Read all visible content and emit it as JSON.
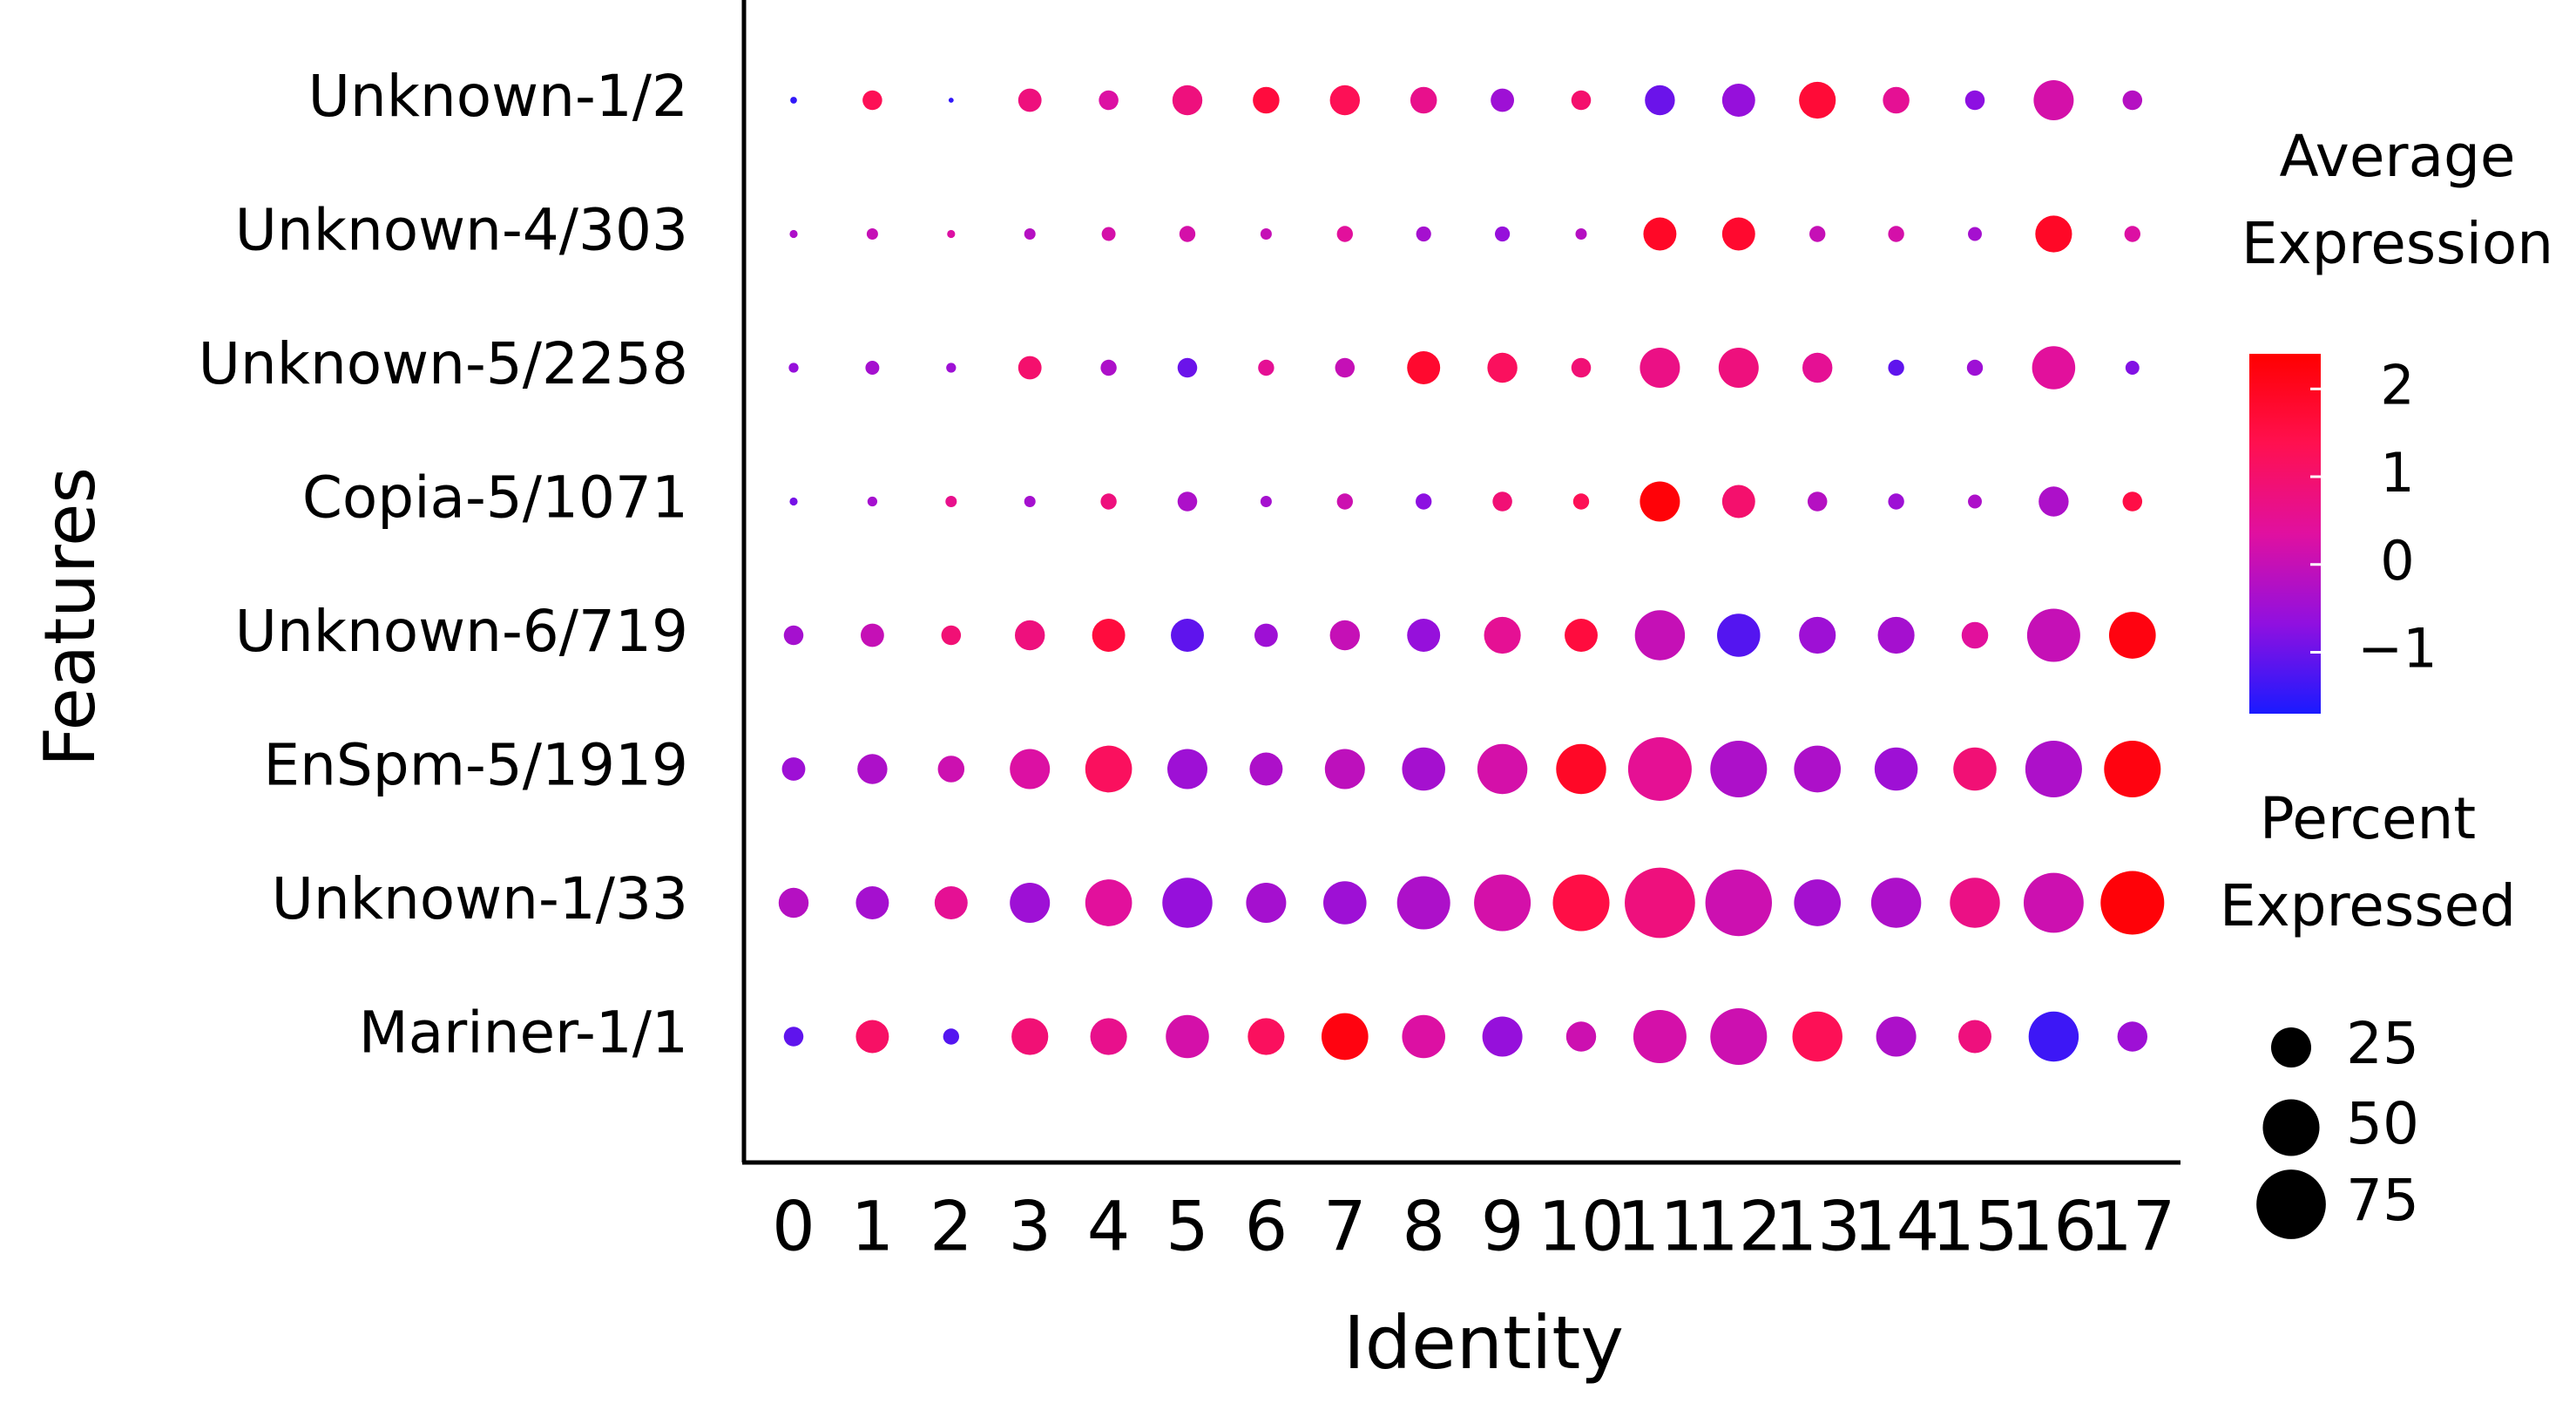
{
  "chart_data": {
    "type": "dotplot",
    "x_label": "Identity",
    "y_label": "Features",
    "categories": [
      "0",
      "1",
      "2",
      "3",
      "4",
      "5",
      "6",
      "7",
      "8",
      "9",
      "10",
      "11",
      "12",
      "13",
      "14",
      "15",
      "16",
      "17"
    ],
    "series": [
      {
        "name": "Unknown-1/2",
        "expression": [
          -1.5,
          1.3,
          -1.5,
          0.8,
          0.3,
          0.8,
          1.6,
          1.3,
          0.6,
          -0.5,
          1.0,
          -1.0,
          -0.6,
          1.7,
          0.5,
          -0.7,
          0.2,
          -0.2
        ],
        "percent": [
          0.7,
          6,
          0.4,
          8.5,
          6,
          14,
          11,
          14,
          11,
          8.5,
          6,
          14,
          17,
          21,
          11,
          6,
          25,
          6
        ]
      },
      {
        "name": "Unknown-4/303",
        "expression": [
          -0.3,
          0.0,
          0.3,
          -0.2,
          0.2,
          0.2,
          0.0,
          0.4,
          -0.4,
          -0.6,
          -0.2,
          1.9,
          1.8,
          0.0,
          0.2,
          -0.4,
          1.9,
          0.3
        ],
        "percent": [
          1,
          2,
          1,
          2,
          3,
          4,
          2,
          4,
          3.5,
          3.5,
          2,
          17,
          17,
          4,
          4,
          3,
          21,
          4
        ]
      },
      {
        "name": "Unknown-5/2258",
        "expression": [
          -0.6,
          -0.4,
          -0.5,
          1.0,
          -0.3,
          -1.0,
          0.5,
          0.0,
          1.8,
          1.2,
          0.9,
          0.7,
          0.8,
          0.5,
          -1.1,
          -0.5,
          0.4,
          -0.8
        ],
        "percent": [
          1.5,
          3,
          1.5,
          8.5,
          4,
          6,
          4,
          6,
          17,
          14,
          6,
          25,
          25,
          14,
          4,
          4,
          29,
          3
        ]
      },
      {
        "name": "Copia-5/1071",
        "expression": [
          -0.9,
          -0.4,
          0.6,
          -0.4,
          0.8,
          -0.3,
          -0.4,
          0.1,
          -0.7,
          0.9,
          1.3,
          2.3,
          1.0,
          -0.2,
          -0.5,
          -0.3,
          -0.3,
          1.5
        ],
        "percent": [
          1,
          1.5,
          2,
          2,
          4,
          6,
          2,
          4,
          4,
          6,
          4,
          25,
          17,
          6,
          4,
          3,
          14,
          6
        ]
      },
      {
        "name": "Unknown-6/719",
        "expression": [
          -0.4,
          0.0,
          0.9,
          0.8,
          1.6,
          -1.1,
          -0.5,
          0.0,
          -0.6,
          0.5,
          1.6,
          0.0,
          -1.2,
          -0.5,
          -0.4,
          0.4,
          0.0,
          2.2
        ],
        "percent": [
          6,
          8.5,
          6,
          14,
          17,
          17,
          8.5,
          14,
          17,
          21,
          17,
          39,
          29,
          21,
          21,
          11,
          44,
          34
        ]
      },
      {
        "name": "EnSpm-5/1919",
        "expression": [
          -0.5,
          -0.3,
          0.1,
          0.3,
          1.2,
          -0.5,
          -0.3,
          -0.1,
          -0.4,
          0.2,
          1.9,
          0.5,
          -0.3,
          -0.3,
          -0.5,
          0.9,
          -0.3,
          2.2
        ],
        "percent": [
          8.5,
          14,
          11,
          25,
          34,
          25,
          17,
          25,
          29,
          39,
          39,
          63,
          50,
          34,
          29,
          29,
          50,
          50
        ]
      },
      {
        "name": "Unknown-1/33",
        "expression": [
          -0.2,
          -0.4,
          0.5,
          -0.5,
          0.4,
          -0.6,
          -0.4,
          -0.5,
          -0.3,
          0.2,
          1.5,
          0.8,
          0.1,
          -0.4,
          -0.3,
          0.7,
          0.1,
          2.3
        ],
        "percent": [
          14,
          17,
          17,
          25,
          34,
          39,
          25,
          29,
          44,
          50,
          50,
          77,
          69,
          34,
          39,
          39,
          56,
          63
        ]
      },
      {
        "name": "Mariner-1/1",
        "expression": [
          -1.1,
          1.1,
          -1.2,
          0.9,
          0.6,
          0.2,
          1.2,
          2.2,
          0.3,
          -0.6,
          0.1,
          0.2,
          0.1,
          1.3,
          -0.3,
          0.8,
          -1.4,
          -0.5
        ],
        "percent": [
          6,
          17,
          4,
          21,
          21,
          29,
          21,
          34,
          29,
          25,
          14,
          44,
          50,
          39,
          25,
          17,
          39,
          14
        ]
      }
    ],
    "color_legend": {
      "title": "Average Expression",
      "lim": [
        -1.7,
        2.4
      ],
      "ticks": [
        2,
        1,
        0,
        {
          "value": -1,
          "label": "−1"
        }
      ],
      "colors": [
        "#1a1aff",
        "#9010e0",
        "#e010a0",
        "#ff1050",
        "#ff0000"
      ]
    },
    "size_legend": {
      "title": "Percent Expressed",
      "values": [
        25,
        50,
        75
      ]
    }
  }
}
